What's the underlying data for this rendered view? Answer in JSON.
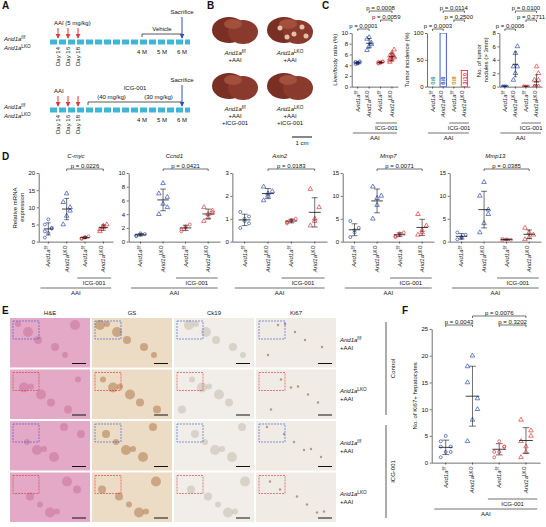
{
  "letters": [
    "A",
    "B",
    "C",
    "D",
    "E",
    "F"
  ],
  "figure": {
    "A": {
      "timelines": [
        {
          "genotypes": [
            "Arid1af/f",
            "Arid1aLKO"
          ],
          "injection": "AAI (5 mg/kg)",
          "days": [
            "Day 14",
            "Day 16",
            "Day 18"
          ],
          "months": [
            "4 M",
            "5 M",
            "6 M"
          ],
          "treatment": {
            "name": "Vehicle",
            "doses": []
          },
          "endpoint": "Sacrifice"
        },
        {
          "genotypes": [
            "Arid1af/f",
            "Arid1aLKO"
          ],
          "injection": "AAI",
          "days": [
            "Day 14",
            "Day 16",
            "Day 18"
          ],
          "months": [
            "4 M",
            "5 M",
            "6 M"
          ],
          "treatment": {
            "name": "ICG-001",
            "doses": [
              "(40 mg/kg)",
              "(30 mg/kg)"
            ]
          },
          "endpoint": "Sacrifice"
        }
      ]
    },
    "B": {
      "images": [
        [
          "Arid1af/f",
          "+AAI"
        ],
        [
          "Arid1aLKO",
          "+AAI"
        ],
        [
          "Arid1af/f",
          "+AAI",
          "+ICG-001"
        ],
        [
          "Arid1aLKO",
          "+AAI",
          "+ICG-001"
        ]
      ],
      "scale_bar": "1 cm"
    },
    "E": {
      "columns": [
        "H&E",
        "GS",
        "Ck19",
        "Ki67"
      ],
      "rows": [
        [
          "Arid1af/f",
          "+AAI"
        ],
        [
          "Arid1aLKO",
          "+AAI"
        ],
        [
          "Arid1af/f",
          "+AAI"
        ],
        [
          "Arid1aLKO",
          "+AAI"
        ]
      ],
      "groups": [
        {
          "label": "Control",
          "from": 0,
          "to": 1
        },
        {
          "label": "ICG-001",
          "from": 2,
          "to": 3
        }
      ]
    }
  },
  "chart_data": [
    {
      "type": "dot",
      "y_label": "Liver/body ratio (%)",
      "categories": [
        "Arid1af/f",
        "Arid1aLKO",
        "Arid1af/f",
        "Arid1aLKO"
      ],
      "series": [
        {
          "color": "#2e50b8",
          "marker": "circle",
          "points": [
            4.2,
            4.4,
            4.5,
            4.6,
            4.3,
            4.7,
            4.5,
            4.4
          ],
          "mean": 4.45,
          "sd": 0.16
        },
        {
          "color": "#2e50b8",
          "marker": "triangle",
          "points": [
            6.8,
            7.5,
            8.2,
            8.9,
            9.2,
            7.9
          ],
          "mean": 8.08,
          "sd": 0.89
        },
        {
          "color": "#e0393b",
          "marker": "circle",
          "points": [
            4.3,
            4.5,
            4.6,
            4.4,
            4.5,
            4.7,
            4.6
          ],
          "mean": 4.51,
          "sd": 0.13
        },
        {
          "color": "#e0393b",
          "marker": "triangle",
          "points": [
            4.6,
            5.0,
            5.4,
            5.8,
            6.3,
            6.9,
            5.2,
            6.0,
            5.6,
            4.9
          ],
          "mean": 5.57,
          "sd": 0.7
        }
      ],
      "ylim": [
        0,
        10
      ],
      "yticks": [
        0,
        2,
        4,
        6,
        8,
        10
      ],
      "brackets": [
        {
          "from": 0,
          "to": 1,
          "label": "p = 0.0001"
        },
        {
          "from": 2,
          "to": 3,
          "label": "p = 0.0059"
        },
        {
          "from": 1,
          "to": 3,
          "label": "p = 0.0008"
        }
      ],
      "groups": [
        {
          "label": "ICG-001",
          "from": 2,
          "to": 3
        },
        {
          "label": "AAI",
          "from": 0,
          "to": 3
        }
      ]
    },
    {
      "type": "bar",
      "y_label": "Tumor incidence (%)",
      "categories": [
        "Arid1af/f",
        "Arid1aLKO",
        "Arid1af/f",
        "Arid1aLKO"
      ],
      "values": [
        0,
        100,
        0,
        30
      ],
      "colors": [
        "#1f9e8a",
        "#2e50b8",
        "#d08a00",
        "#e0393b"
      ],
      "fractions": [
        "0/6",
        "6/6",
        "0/8",
        "3/10"
      ],
      "ylim": [
        0,
        100
      ],
      "yticks": [
        0,
        50,
        100
      ],
      "brackets": [
        {
          "from": 0,
          "to": 1,
          "label": "p = 0.0003"
        },
        {
          "from": 2,
          "to": 3,
          "label": "p = 0.2500"
        },
        {
          "from": 1,
          "to": 3,
          "label": "p = 0.0114"
        }
      ],
      "groups": [
        {
          "label": "ICG-001",
          "from": 2,
          "to": 3
        },
        {
          "label": "AAI",
          "from": 0,
          "to": 3
        }
      ]
    },
    {
      "type": "dot",
      "y_label": "No. of tumor nodules (> 3mm)",
      "categories": [
        "Arid1af/f",
        "Arid1aLKO",
        "Arid1af/f",
        "Arid1aLKO"
      ],
      "series": [
        {
          "color": "#2e50b8",
          "marker": "circle",
          "points": [
            0,
            0,
            0,
            0,
            0,
            0,
            0,
            0
          ],
          "mean": 0,
          "sd": 0
        },
        {
          "color": "#2e50b8",
          "marker": "triangle",
          "points": [
            1,
            2,
            3,
            3,
            5,
            6
          ],
          "mean": 3.33,
          "sd": 1.86
        },
        {
          "color": "#e0393b",
          "marker": "circle",
          "points": [
            0,
            0,
            0,
            0,
            0,
            0,
            0
          ],
          "mean": 0,
          "sd": 0
        },
        {
          "color": "#e0393b",
          "marker": "triangle",
          "points": [
            0,
            0,
            0,
            1,
            0,
            2,
            0,
            3,
            1,
            0
          ],
          "mean": 0.7,
          "sd": 1.06
        }
      ],
      "ylim": [
        0,
        8
      ],
      "yticks": [
        0,
        2,
        4,
        6,
        8
      ],
      "brackets": [
        {
          "from": 0,
          "to": 1,
          "label": "p = 0.0006"
        },
        {
          "from": 2,
          "to": 3,
          "label": "p = 0.2711"
        },
        {
          "from": 1,
          "to": 3,
          "label": "p = 0.0100"
        }
      ],
      "groups": [
        {
          "label": "ICG-001",
          "from": 2,
          "to": 3
        },
        {
          "label": "AAI",
          "from": 0,
          "to": 3
        }
      ]
    },
    {
      "type": "dot",
      "title": "C-myc",
      "y_label": "Relative mRNA expression",
      "categories": [
        "Arid1af/f",
        "Arid1aLKO",
        "Arid1af/f",
        "Arid1aLKO"
      ],
      "series": [
        {
          "color": "#2e50b8",
          "marker": "circle",
          "points": [
            1.2,
            2.5,
            3.8,
            5.0,
            6.5,
            4.0,
            3.0
          ],
          "mean": 3.71,
          "sd": 1.77
        },
        {
          "color": "#2e50b8",
          "marker": "triangle",
          "points": [
            5.0,
            7.5,
            9.0,
            11.5,
            14.0,
            10.0
          ],
          "mean": 9.5,
          "sd": 3.1
        },
        {
          "color": "#e0393b",
          "marker": "circle",
          "points": [
            0.8,
            1.2,
            1.5,
            1.0,
            1.3
          ],
          "mean": 1.16,
          "sd": 0.27
        },
        {
          "color": "#e0393b",
          "marker": "triangle",
          "points": [
            3.0,
            4.2,
            5.0,
            3.6,
            4.6
          ],
          "mean": 4.08,
          "sd": 0.79
        }
      ],
      "ylim": [
        0,
        20
      ],
      "yticks": [
        0,
        5,
        10,
        15,
        20
      ],
      "brackets": [
        {
          "from": 1,
          "to": 3,
          "label": "p = 0.0226"
        }
      ],
      "groups": [
        {
          "label": "ICG-001",
          "from": 2,
          "to": 3
        },
        {
          "label": "AAI",
          "from": 0,
          "to": 3
        }
      ]
    },
    {
      "type": "dot",
      "title": "Ccnd1",
      "categories": [
        "Arid1af/f",
        "Arid1aLKO",
        "Arid1af/f",
        "Arid1aLKO"
      ],
      "series": [
        {
          "color": "#2e50b8",
          "marker": "circle",
          "points": [
            0.8,
            1.0,
            1.1,
            0.9,
            1.2
          ],
          "mean": 1.0,
          "sd": 0.16
        },
        {
          "color": "#2e50b8",
          "marker": "triangle",
          "points": [
            4.0,
            5.5,
            6.5,
            7.0,
            8.5,
            5.0
          ],
          "mean": 6.08,
          "sd": 1.58
        },
        {
          "color": "#e0393b",
          "marker": "circle",
          "points": [
            1.5,
            2.0,
            2.5,
            1.8,
            2.2
          ],
          "mean": 2.0,
          "sd": 0.39
        },
        {
          "color": "#e0393b",
          "marker": "triangle",
          "points": [
            3.0,
            4.0,
            4.5,
            5.0,
            3.5,
            4.2
          ],
          "mean": 4.03,
          "sd": 0.71
        }
      ],
      "ylim": [
        0,
        10
      ],
      "yticks": [
        0,
        2,
        4,
        6,
        8,
        10
      ],
      "brackets": [
        {
          "from": 1,
          "to": 3,
          "label": "p = 0.0421"
        }
      ],
      "groups": [
        {
          "label": "ICG-001",
          "from": 2,
          "to": 3
        },
        {
          "label": "AAI",
          "from": 0,
          "to": 3
        }
      ]
    },
    {
      "type": "dot",
      "title": "Axin2",
      "categories": [
        "Arid1af/f",
        "Arid1aLKO",
        "Arid1af/f",
        "Arid1aLKO"
      ],
      "series": [
        {
          "color": "#2e50b8",
          "marker": "circle",
          "points": [
            0.6,
            0.9,
            1.1,
            1.3,
            1.0,
            0.8
          ],
          "mean": 0.95,
          "sd": 0.25
        },
        {
          "color": "#2e50b8",
          "marker": "triangle",
          "points": [
            1.8,
            2.0,
            2.2,
            2.4,
            2.1
          ],
          "mean": 2.1,
          "sd": 0.22
        },
        {
          "color": "#e0393b",
          "marker": "circle",
          "points": [
            0.8,
            0.9,
            1.0,
            0.85,
            0.95
          ],
          "mean": 0.9,
          "sd": 0.08
        },
        {
          "color": "#e0393b",
          "marker": "triangle",
          "points": [
            0.7,
            1.0,
            1.5,
            2.3,
            0.9
          ],
          "mean": 1.28,
          "sd": 0.64
        }
      ],
      "ylim": [
        0,
        3
      ],
      "yticks": [
        0,
        1,
        2,
        3
      ],
      "brackets": [
        {
          "from": 1,
          "to": 3,
          "label": "p = 0.0183"
        }
      ],
      "groups": [
        {
          "label": "ICG-001",
          "from": 2,
          "to": 3
        },
        {
          "label": "AAI",
          "from": 0,
          "to": 3
        }
      ]
    },
    {
      "type": "dot",
      "title": "Mmp7",
      "categories": [
        "Arid1af/f",
        "Arid1aLKO",
        "Arid1af/f",
        "Arid1aLKO"
      ],
      "series": [
        {
          "color": "#2e50b8",
          "marker": "circle",
          "points": [
            1.0,
            2.0,
            3.0,
            4.5,
            2.5
          ],
          "mean": 2.6,
          "sd": 1.3
        },
        {
          "color": "#2e50b8",
          "marker": "triangle",
          "points": [
            5.0,
            8.0,
            10.0,
            12.0,
            9.5
          ],
          "mean": 8.9,
          "sd": 2.6
        },
        {
          "color": "#e0393b",
          "marker": "circle",
          "points": [
            1.0,
            1.5,
            2.0,
            1.2,
            1.8
          ],
          "mean": 1.5,
          "sd": 0.41
        },
        {
          "color": "#e0393b",
          "marker": "triangle",
          "points": [
            1.5,
            2.5,
            3.5,
            6.0,
            2.0
          ],
          "mean": 3.1,
          "sd": 1.78
        }
      ],
      "ylim": [
        0,
        15
      ],
      "yticks": [
        0,
        5,
        10,
        15
      ],
      "brackets": [
        {
          "from": 1,
          "to": 3,
          "label": "p = 0.0071"
        }
      ],
      "groups": [
        {
          "label": "ICG-001",
          "from": 2,
          "to": 3
        },
        {
          "label": "AAI",
          "from": 0,
          "to": 3
        }
      ]
    },
    {
      "type": "dot",
      "title": "Mmp13",
      "categories": [
        "Arid1af/f",
        "Arid1aLKO",
        "Arid1af/f",
        "Arid1aLKO"
      ],
      "series": [
        {
          "color": "#2e50b8",
          "marker": "circle",
          "points": [
            0.5,
            1.0,
            1.5,
            2.0,
            0.8
          ],
          "mean": 1.16,
          "sd": 0.6
        },
        {
          "color": "#2e50b8",
          "marker": "triangle",
          "points": [
            2.0,
            4.0,
            7.0,
            10.0,
            13.0,
            6.0
          ],
          "mean": 7.0,
          "sd": 4.0
        },
        {
          "color": "#e0393b",
          "marker": "circle",
          "points": [
            0.3,
            0.5,
            0.4,
            0.6
          ],
          "mean": 0.45,
          "sd": 0.13
        },
        {
          "color": "#e0393b",
          "marker": "triangle",
          "points": [
            0.5,
            1.0,
            1.5,
            3.0,
            2.0
          ],
          "mean": 1.6,
          "sd": 0.96
        }
      ],
      "ylim": [
        0,
        15
      ],
      "yticks": [
        0,
        5,
        10,
        15
      ],
      "brackets": [
        {
          "from": 1,
          "to": 3,
          "label": "p = 0.0385"
        }
      ],
      "groups": [
        {
          "label": "ICG-001",
          "from": 2,
          "to": 3
        },
        {
          "label": "AAI",
          "from": 0,
          "to": 3
        }
      ]
    },
    {
      "type": "dot",
      "y_label": "No. of Ki67+ hepatocytes",
      "categories": [
        "Arid1af/f",
        "Arid1aLKO",
        "Arid1af/f",
        "Arid1aLKO"
      ],
      "series": [
        {
          "color": "#2e50b8",
          "marker": "circle",
          "points": [
            1,
            2,
            3,
            4,
            5,
            2,
            3
          ],
          "mean": 2.86,
          "sd": 1.35
        },
        {
          "color": "#2e50b8",
          "marker": "triangle",
          "points": [
            4,
            8,
            12,
            15,
            20,
            10,
            18
          ],
          "mean": 12.43,
          "sd": 5.6
        },
        {
          "color": "#e0393b",
          "marker": "circle",
          "points": [
            1,
            2,
            3,
            2,
            4,
            3
          ],
          "mean": 2.5,
          "sd": 1.05
        },
        {
          "color": "#e0393b",
          "marker": "triangle",
          "points": [
            1,
            3,
            5,
            8,
            2,
            6,
            4
          ],
          "mean": 4.14,
          "sd": 2.4
        }
      ],
      "ylim": [
        0,
        25
      ],
      "yticks": [
        0,
        5,
        10,
        15,
        20,
        25
      ],
      "brackets": [
        {
          "from": 0,
          "to": 1,
          "label": "p = 0.0043"
        },
        {
          "from": 2,
          "to": 3,
          "label": "p = 0.3202"
        },
        {
          "from": 1,
          "to": 3,
          "label": "p = 0.0076"
        }
      ],
      "groups": [
        {
          "label": "ICG-001",
          "from": 2,
          "to": 3
        },
        {
          "label": "AAI",
          "from": 0,
          "to": 3
        }
      ]
    }
  ]
}
